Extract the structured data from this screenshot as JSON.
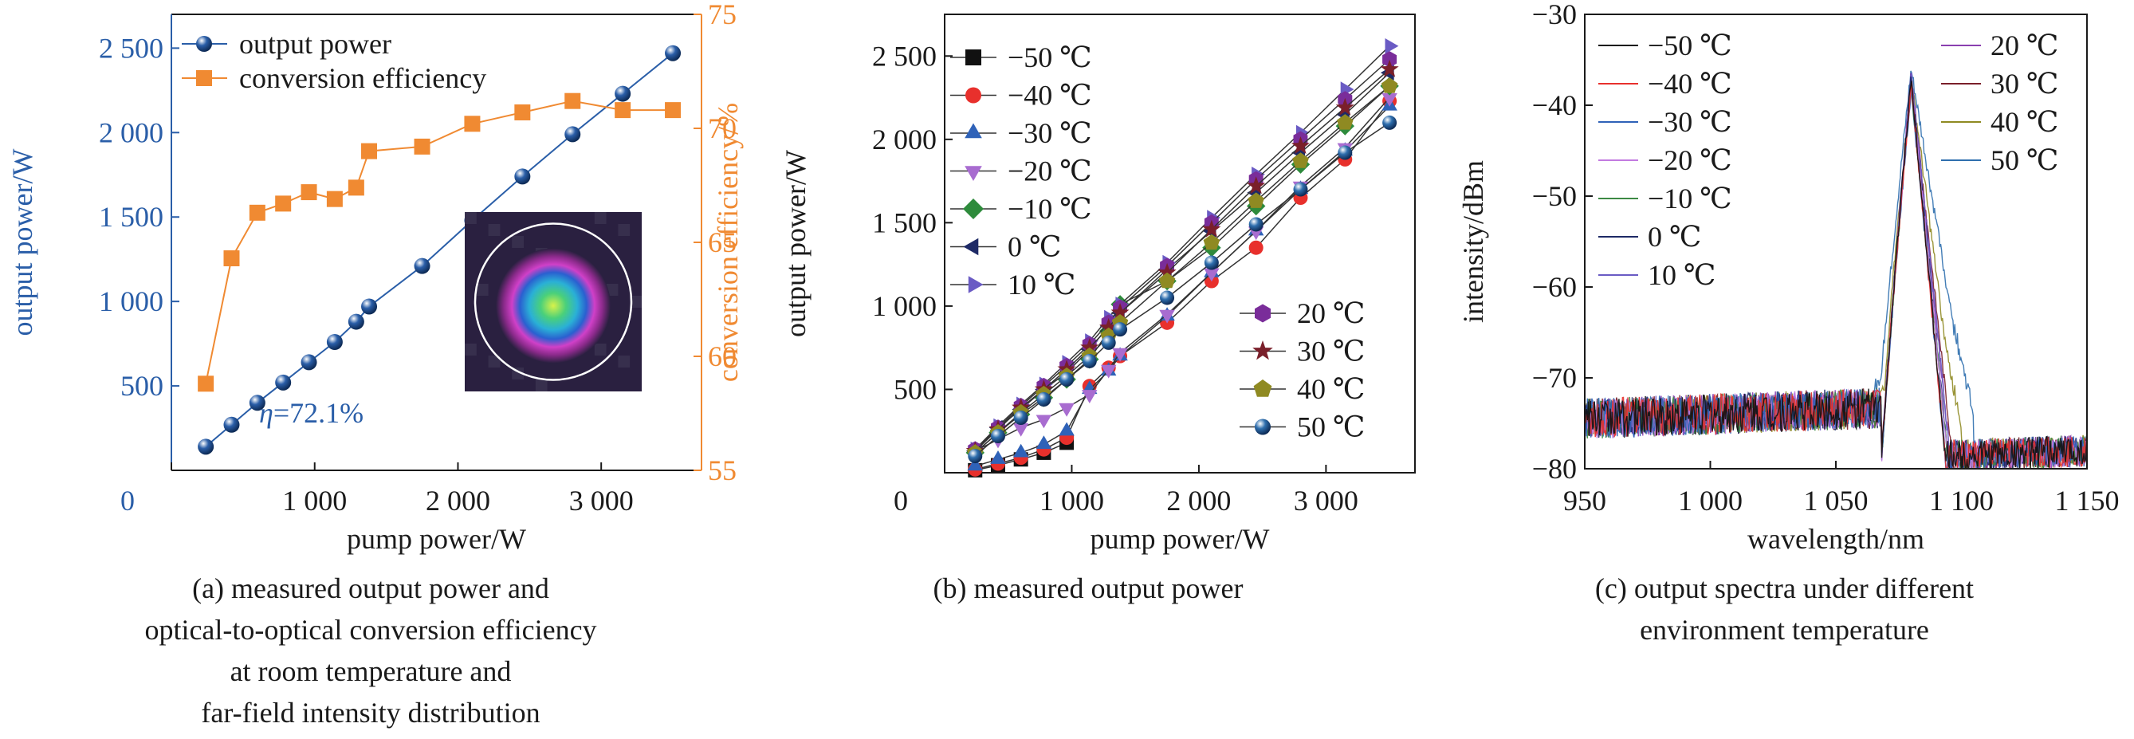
{
  "panels": {
    "a": {
      "caption": [
        "(a) measured output power and",
        "optical-to-optical conversion efficiency",
        "at room temperature and",
        "far-field intensity distribution"
      ],
      "annotation_prefix": "η",
      "annotation_value": "=72.1%"
    },
    "b": {
      "caption": [
        "(b) measured output power"
      ]
    },
    "c": {
      "caption": [
        "(c) output spectra under different",
        "environment temperature"
      ]
    }
  },
  "colors": {
    "blue": "#2a5ea8",
    "orange": "#f08a32",
    "axis": "#1a1a1a"
  },
  "chart_data": [
    {
      "id": "a",
      "type": "line",
      "xlabel": "pump power/W",
      "ylabel": "output power/W",
      "y2label": "conversion efficiency/%",
      "xlim": [
        0,
        3700
      ],
      "ylim": [
        0,
        2700
      ],
      "y2lim": [
        55,
        75
      ],
      "xticks": [
        {
          "v": 0,
          "t": "0"
        },
        {
          "v": 1000,
          "t": "1 000"
        },
        {
          "v": 2000,
          "t": "2 000"
        },
        {
          "v": 3000,
          "t": "3 000"
        }
      ],
      "yticks": [
        {
          "v": 500,
          "t": "500"
        },
        {
          "v": 1000,
          "t": "1 000"
        },
        {
          "v": 1500,
          "t": "1 500"
        },
        {
          "v": 2000,
          "t": "2 000"
        },
        {
          "v": 2500,
          "t": "2 500"
        }
      ],
      "y2ticks": [
        {
          "v": 55,
          "t": "55"
        },
        {
          "v": 60,
          "t": "60"
        },
        {
          "v": 65,
          "t": "65"
        },
        {
          "v": 70,
          "t": "70"
        },
        {
          "v": 75,
          "t": "75"
        }
      ],
      "series": [
        {
          "name": "output power",
          "axis": "left",
          "marker": "sphere",
          "color": "#2a5ea8",
          "x": [
            240,
            420,
            600,
            780,
            960,
            1140,
            1290,
            1380,
            1750,
            2100,
            2450,
            2800,
            3150,
            3500
          ],
          "y": [
            140,
            270,
            400,
            520,
            640,
            760,
            880,
            970,
            1210,
            1480,
            1740,
            1990,
            2230,
            2470
          ]
        },
        {
          "name": "conversion efficiency",
          "axis": "right",
          "marker": "square",
          "color": "#f08a32",
          "x": [
            240,
            420,
            600,
            780,
            960,
            1140,
            1290,
            1380,
            1750,
            2100,
            2450,
            2800,
            3150,
            3500
          ],
          "y": [
            58.8,
            64.3,
            66.3,
            66.7,
            67.2,
            66.9,
            67.4,
            69.0,
            69.2,
            70.2,
            70.7,
            71.2,
            70.8,
            70.8
          ]
        }
      ]
    },
    {
      "id": "b",
      "type": "line",
      "xlabel": "pump power/W",
      "ylabel": "output power/W",
      "xlim": [
        0,
        3700
      ],
      "ylim": [
        0,
        2750
      ],
      "xticks": [
        {
          "v": 0,
          "t": "0"
        },
        {
          "v": 1000,
          "t": "1 000"
        },
        {
          "v": 2000,
          "t": "2 000"
        },
        {
          "v": 3000,
          "t": "3 000"
        }
      ],
      "yticks": [
        {
          "v": 500,
          "t": "500"
        },
        {
          "v": 1000,
          "t": "1 000"
        },
        {
          "v": 1500,
          "t": "1 500"
        },
        {
          "v": 2000,
          "t": "2 000"
        },
        {
          "v": 2500,
          "t": "2 500"
        }
      ],
      "series": [
        {
          "name": "−50 ℃",
          "marker": "square",
          "color": "#111111",
          "x": [
            240,
            420,
            600,
            780,
            960
          ],
          "y": [
            15,
            45,
            80,
            120,
            180
          ]
        },
        {
          "name": "−40 ℃",
          "marker": "circle",
          "color": "#e8302c",
          "x": [
            240,
            420,
            600,
            780,
            960,
            1140,
            1290,
            1380,
            1750,
            2100,
            2450,
            2800,
            3150,
            3500
          ],
          "y": [
            20,
            55,
            90,
            140,
            210,
            520,
            630,
            700,
            900,
            1150,
            1350,
            1650,
            1880,
            2230
          ]
        },
        {
          "name": "−30 ℃",
          "marker": "triangle-up",
          "color": "#2f62b8",
          "x": [
            240,
            420,
            600,
            780,
            960,
            1140,
            1290,
            1380,
            1750,
            2100,
            2450,
            2800,
            3150,
            3500
          ],
          "y": [
            40,
            80,
            120,
            170,
            250,
            500,
            610,
            700,
            940,
            1200,
            1450,
            1700,
            1930,
            2200
          ]
        },
        {
          "name": "−20 ℃",
          "marker": "triangle-down",
          "color": "#a86cd0",
          "x": [
            240,
            420,
            600,
            780,
            960,
            1140,
            1290,
            1380,
            1750,
            2100,
            2450,
            2800,
            3150,
            3500
          ],
          "y": [
            130,
            200,
            270,
            320,
            390,
            470,
            620,
            720,
            950,
            1200,
            1450,
            1720,
            1950,
            2250
          ]
        },
        {
          "name": "−10 ℃",
          "marker": "diamond",
          "color": "#2e8b3c",
          "x": [
            240,
            420,
            600,
            780,
            960,
            1140,
            1290,
            1380,
            1750,
            2100,
            2450,
            2800,
            3150,
            3500
          ],
          "y": [
            120,
            240,
            350,
            450,
            560,
            680,
            850,
            1010,
            1150,
            1350,
            1600,
            1850,
            2080,
            2320
          ]
        },
        {
          "name": "0 ℃",
          "marker": "triangle-left",
          "color": "#1e2a66",
          "x": [
            240,
            420,
            600,
            780,
            960,
            1140,
            1290,
            1380,
            1750,
            2100,
            2450,
            2800,
            3150,
            3500
          ],
          "y": [
            130,
            270,
            380,
            500,
            600,
            740,
            880,
            960,
            1220,
            1450,
            1680,
            1920,
            2150,
            2400
          ]
        },
        {
          "name": "10 ℃",
          "marker": "triangle-right",
          "color": "#6a5bc4",
          "x": [
            240,
            420,
            600,
            780,
            960,
            1140,
            1290,
            1380,
            1750,
            2100,
            2450,
            2800,
            3150,
            3500
          ],
          "y": [
            140,
            280,
            410,
            530,
            660,
            790,
            930,
            1010,
            1260,
            1530,
            1790,
            2040,
            2300,
            2560
          ]
        },
        {
          "name": "20 ℃",
          "marker": "hexagon",
          "color": "#7a2d9a",
          "x": [
            240,
            420,
            600,
            780,
            960,
            1140,
            1290,
            1380,
            1750,
            2100,
            2450,
            2800,
            3150,
            3500
          ],
          "y": [
            140,
            270,
            400,
            520,
            640,
            770,
            900,
            990,
            1240,
            1500,
            1760,
            2000,
            2240,
            2480
          ]
        },
        {
          "name": "30 ℃",
          "marker": "star",
          "color": "#7a1f2a",
          "x": [
            240,
            420,
            600,
            780,
            960,
            1140,
            1290,
            1380,
            1750,
            2100,
            2450,
            2800,
            3150,
            3500
          ],
          "y": [
            130,
            260,
            390,
            500,
            620,
            750,
            870,
            960,
            1200,
            1460,
            1720,
            1960,
            2190,
            2420
          ]
        },
        {
          "name": "40 ℃",
          "marker": "pentagon",
          "color": "#8f8a22",
          "x": [
            240,
            420,
            600,
            780,
            960,
            1140,
            1290,
            1380,
            1750,
            2100,
            2450,
            2800,
            3150,
            3500
          ],
          "y": [
            120,
            240,
            360,
            470,
            580,
            700,
            820,
            900,
            1150,
            1380,
            1630,
            1870,
            2100,
            2320
          ]
        },
        {
          "name": "50 ℃",
          "marker": "sphere",
          "color": "#2f6fae",
          "x": [
            240,
            420,
            600,
            780,
            960,
            1140,
            1290,
            1380,
            1750,
            2100,
            2450,
            2800,
            3150,
            3500
          ],
          "y": [
            100,
            220,
            330,
            440,
            560,
            670,
            780,
            860,
            1050,
            1260,
            1490,
            1700,
            1920,
            2100
          ]
        }
      ],
      "legend_groups": [
        [
          "−50 ℃",
          "−40 ℃",
          "−30 ℃",
          "−20 ℃",
          "−10 ℃",
          "0 ℃",
          "10 ℃"
        ],
        [
          "20 ℃",
          "30 ℃",
          "40 ℃",
          "50 ℃"
        ]
      ]
    },
    {
      "id": "c",
      "type": "line",
      "xlabel": "wavelength/nm",
      "ylabel": "intensity/dBm",
      "xlim": [
        950,
        1150
      ],
      "ylim": [
        -80,
        -30
      ],
      "xticks": [
        {
          "v": 950,
          "t": "950"
        },
        {
          "v": 1000,
          "t": "1 000"
        },
        {
          "v": 1050,
          "t": "1 050"
        },
        {
          "v": 1100,
          "t": "1 100"
        },
        {
          "v": 1150,
          "t": "1 150"
        }
      ],
      "yticks": [
        {
          "v": -80,
          "t": "−80"
        },
        {
          "v": -70,
          "t": "−70"
        },
        {
          "v": -60,
          "t": "−60"
        },
        {
          "v": -50,
          "t": "−50"
        },
        {
          "v": -40,
          "t": "−40"
        },
        {
          "v": -30,
          "t": "−30"
        }
      ],
      "series": [
        {
          "name": "−50 ℃",
          "color": "#111111",
          "peak": -37,
          "left_edge": 1071,
          "right_edge": 1094,
          "shoulder": 0
        },
        {
          "name": "−40 ℃",
          "color": "#e8302c",
          "peak": -37.5,
          "left_edge": 1071,
          "right_edge": 1094,
          "shoulder": 0
        },
        {
          "name": "−30 ℃",
          "color": "#2f62b8",
          "peak": -38,
          "left_edge": 1071,
          "right_edge": 1094,
          "shoulder": 0
        },
        {
          "name": "−20 ℃",
          "color": "#c27ae0",
          "peak": -37.5,
          "left_edge": 1071,
          "right_edge": 1095,
          "shoulder": 0
        },
        {
          "name": "−10 ℃",
          "color": "#3c8a44",
          "peak": -38,
          "left_edge": 1071,
          "right_edge": 1095,
          "shoulder": 0
        },
        {
          "name": "0 ℃",
          "color": "#1e2a66",
          "peak": -37,
          "left_edge": 1071,
          "right_edge": 1095,
          "shoulder": 0
        },
        {
          "name": "10 ℃",
          "color": "#6a5bc4",
          "peak": -36.5,
          "left_edge": 1071,
          "right_edge": 1096,
          "shoulder": 0
        },
        {
          "name": "20 ℃",
          "color": "#8a3fb0",
          "peak": -36.5,
          "left_edge": 1071,
          "right_edge": 1096,
          "shoulder": 0
        },
        {
          "name": "30 ℃",
          "color": "#7a1f2a",
          "peak": -37,
          "left_edge": 1071,
          "right_edge": 1097,
          "shoulder": 0
        },
        {
          "name": "40 ℃",
          "color": "#8f8a22",
          "peak": -37,
          "left_edge": 1070,
          "right_edge": 1100,
          "shoulder": 1
        },
        {
          "name": "50 ℃",
          "color": "#2f6fae",
          "peak": -36,
          "left_edge": 1068,
          "right_edge": 1106,
          "shoulder": 2
        }
      ],
      "legend_groups": [
        [
          "−50 ℃",
          "−40 ℃",
          "−30 ℃",
          "−20 ℃",
          "−10 ℃",
          "0 ℃",
          "10 ℃"
        ],
        [
          "20 ℃",
          "30 ℃",
          "40 ℃",
          "50 ℃"
        ]
      ]
    }
  ]
}
